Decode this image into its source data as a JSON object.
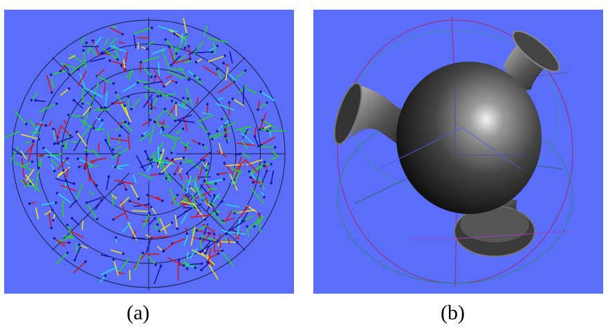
{
  "figure": {
    "panels": [
      {
        "caption": "(a)",
        "icon": "particle-sphere-icon"
      },
      {
        "caption": "(b)",
        "icon": "vase-surface-icon"
      }
    ],
    "colors": {
      "background": "#5a6ef9",
      "wire_dark": "#1a1a3a",
      "stick_red": "#d01818",
      "stick_green": "#22d822",
      "stick_yellow": "#f0e020",
      "stick_cyan": "#20e0e0",
      "stick_blue": "#1818a0",
      "surface": "#2b2b2b"
    }
  }
}
